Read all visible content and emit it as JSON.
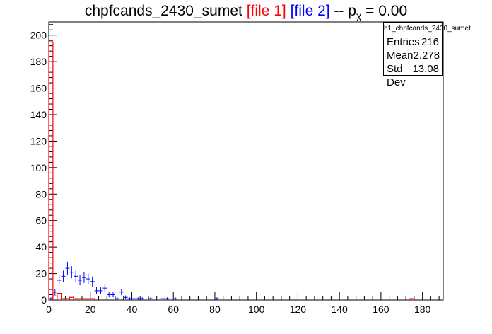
{
  "title": {
    "main": "chpfcands_2430_sumet",
    "file1": "[file 1]",
    "file2": "[file 2]",
    "sep": "--",
    "p": "p",
    "p_sub": "χ",
    "p_value": "= 0.00"
  },
  "stats": {
    "header": "h1_chpfcands_2430_sumet",
    "rows": [
      {
        "label": "Entries",
        "value": "216"
      },
      {
        "label": "Mean",
        "value": "2.278"
      },
      {
        "label": "Std Dev",
        "value": "13.08"
      }
    ]
  },
  "colors": {
    "file1": "#ff0000",
    "file2": "#0000ff",
    "axis": "#000000"
  },
  "chart_data": {
    "type": "bar",
    "xlim": [
      0,
      190
    ],
    "ylim": [
      0,
      210
    ],
    "bin_width": 2,
    "x_ticks": [
      0,
      20,
      40,
      60,
      80,
      100,
      120,
      140,
      160,
      180
    ],
    "x_tick_labels": [
      "0",
      "20",
      "40",
      "60",
      "80",
      "100",
      "120",
      "140",
      "160",
      "180"
    ],
    "y_ticks": [
      0,
      20,
      40,
      60,
      80,
      100,
      120,
      140,
      160,
      180,
      200
    ],
    "y_tick_labels": [
      "0",
      "20",
      "40",
      "60",
      "80",
      "100",
      "120",
      "140",
      "160",
      "180",
      "200"
    ],
    "series": [
      {
        "name": "[file 1]",
        "style": "histogram",
        "bins": [
          {
            "x": 1,
            "y": 195
          },
          {
            "x": 3,
            "y": 3
          },
          {
            "x": 5,
            "y": 5
          },
          {
            "x": 7,
            "y": 1
          },
          {
            "x": 9,
            "y": 1
          },
          {
            "x": 11,
            "y": 2
          },
          {
            "x": 13,
            "y": 1
          },
          {
            "x": 15,
            "y": 1
          },
          {
            "x": 17,
            "y": 1
          },
          {
            "x": 19,
            "y": 1
          },
          {
            "x": 21,
            "y": 1
          },
          {
            "x": 175,
            "y": 1
          }
        ]
      },
      {
        "name": "[file 2]",
        "style": "points",
        "points": [
          {
            "x": 1,
            "y": 1
          },
          {
            "x": 3,
            "y": 6
          },
          {
            "x": 5,
            "y": 15
          },
          {
            "x": 7,
            "y": 18
          },
          {
            "x": 9,
            "y": 24
          },
          {
            "x": 11,
            "y": 21
          },
          {
            "x": 13,
            "y": 18
          },
          {
            "x": 15,
            "y": 15
          },
          {
            "x": 17,
            "y": 17
          },
          {
            "x": 19,
            "y": 16
          },
          {
            "x": 21,
            "y": 14
          },
          {
            "x": 23,
            "y": 7
          },
          {
            "x": 25,
            "y": 7
          },
          {
            "x": 27,
            "y": 9
          },
          {
            "x": 29,
            "y": 4
          },
          {
            "x": 31,
            "y": 4
          },
          {
            "x": 33,
            "y": 1
          },
          {
            "x": 35,
            "y": 6
          },
          {
            "x": 37,
            "y": 2
          },
          {
            "x": 39,
            "y": 1
          },
          {
            "x": 41,
            "y": 1
          },
          {
            "x": 43,
            "y": 1
          },
          {
            "x": 45,
            "y": 1
          },
          {
            "x": 49,
            "y": 1
          },
          {
            "x": 55,
            "y": 1
          },
          {
            "x": 57,
            "y": 1
          },
          {
            "x": 61,
            "y": 1
          },
          {
            "x": 81,
            "y": 1
          }
        ]
      }
    ]
  }
}
